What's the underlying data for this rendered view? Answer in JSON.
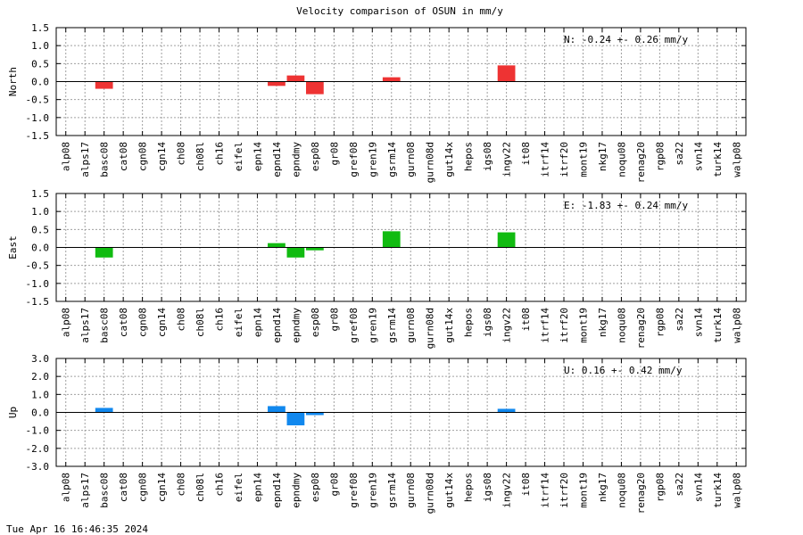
{
  "chart_data": {
    "type": "bar",
    "title": "Velocity comparison of OSUN in mm/y",
    "timestamp": "Tue Apr 16 16:46:35 2024",
    "categories": [
      "alp08",
      "alps17",
      "basc08",
      "cat08",
      "cgn08",
      "cgn14",
      "ch08",
      "ch08l",
      "ch16",
      "eifel",
      "epn14",
      "epnd14",
      "epndmy",
      "esp08",
      "gr08",
      "gref08",
      "gren19",
      "gsrm14",
      "gurn08",
      "gurn08d",
      "gut14x",
      "hepos",
      "igs08",
      "ingv22",
      "it08",
      "itrf14",
      "itrf20",
      "mont19",
      "nkg17",
      "noqu08",
      "renag20",
      "rgp08",
      "sa22",
      "svn14",
      "turk14",
      "walp08"
    ],
    "panels": [
      {
        "ylabel": "North",
        "color": "#ee3333",
        "ylim": [
          -1.5,
          1.5
        ],
        "yticks": [
          "1.5",
          "1.0",
          "0.5",
          "0.0",
          "-0.5",
          "-1.0",
          "-1.5"
        ],
        "annotation": "N:  -0.24 +-  0.26 mm/y",
        "values": [
          0,
          0,
          -0.2,
          0,
          0,
          0,
          0,
          0,
          0,
          0,
          0,
          -0.12,
          0.17,
          -0.35,
          0,
          0,
          0,
          0.12,
          0,
          0,
          0,
          0,
          0,
          0.45,
          0,
          0,
          0,
          0,
          0,
          0,
          0,
          0,
          0,
          0,
          0,
          0
        ]
      },
      {
        "ylabel": "East",
        "color": "#11bb11",
        "ylim": [
          -1.5,
          1.5
        ],
        "yticks": [
          "1.5",
          "1.0",
          "0.5",
          "0.0",
          "-0.5",
          "-1.0",
          "-1.5"
        ],
        "annotation": "E:  -1.83 +-  0.24 mm/y",
        "values": [
          0,
          0,
          -0.28,
          0,
          0,
          0,
          0,
          0,
          0,
          0,
          0,
          0.12,
          -0.28,
          -0.08,
          0,
          0,
          0,
          0.45,
          0,
          0,
          0,
          0,
          0,
          0.42,
          0,
          0,
          0,
          0,
          0,
          0,
          0,
          0,
          0,
          0,
          0,
          0
        ]
      },
      {
        "ylabel": "Up",
        "color": "#1188ee",
        "ylim": [
          -3.0,
          3.0
        ],
        "yticks": [
          "3.0",
          "2.0",
          "1.0",
          "0.0",
          "-1.0",
          "-2.0",
          "-3.0"
        ],
        "annotation": "U:   0.16 +-  0.42 mm/y",
        "values": [
          0,
          0,
          0.25,
          0,
          0,
          0,
          0,
          0,
          0,
          0,
          0,
          0.35,
          -0.72,
          -0.15,
          0,
          0,
          0,
          0,
          0,
          0,
          0,
          0,
          0,
          0.2,
          0,
          0,
          0,
          0,
          0,
          0,
          0,
          0,
          0,
          0,
          0,
          0
        ]
      }
    ]
  }
}
